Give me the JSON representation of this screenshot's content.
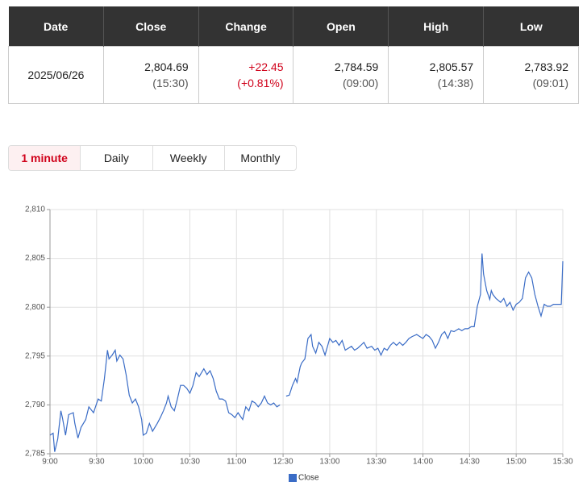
{
  "table": {
    "headers": [
      "Date",
      "Close",
      "Change",
      "Open",
      "High",
      "Low"
    ],
    "row": {
      "date": "2025/06/26",
      "cells": [
        {
          "main": "2,804.69",
          "sub": "(15:30)"
        },
        {
          "main": "+22.45",
          "sub": "(+0.81%)"
        },
        {
          "main": "2,784.59",
          "sub": "(09:00)"
        },
        {
          "main": "2,805.57",
          "sub": "(14:38)"
        },
        {
          "main": "2,783.92",
          "sub": "(09:01)"
        }
      ]
    }
  },
  "tabs": [
    "1 minute",
    "Daily",
    "Weekly",
    "Monthly"
  ],
  "chart_data": {
    "type": "line",
    "xlim": [
      0,
      330
    ],
    "xticks": [
      {
        "value": 0,
        "label": "9:00"
      },
      {
        "value": 30,
        "label": "9:30"
      },
      {
        "value": 60,
        "label": "10:00"
      },
      {
        "value": 90,
        "label": "10:30"
      },
      {
        "value": 120,
        "label": "11:00"
      },
      {
        "value": 150,
        "label": "12:30"
      },
      {
        "value": 180,
        "label": "13:00"
      },
      {
        "value": 210,
        "label": "13:30"
      },
      {
        "value": 240,
        "label": "14:00"
      },
      {
        "value": 270,
        "label": "14:30"
      },
      {
        "value": 300,
        "label": "15:00"
      },
      {
        "value": 330,
        "label": "15:30"
      }
    ],
    "ylim": [
      2785,
      2810
    ],
    "yticks": [
      {
        "value": 2785,
        "label": "2,785"
      },
      {
        "value": 2790,
        "label": "2,790"
      },
      {
        "value": 2795,
        "label": "2,795"
      },
      {
        "value": 2800,
        "label": "2,800"
      },
      {
        "value": 2805,
        "label": "2,805"
      },
      {
        "value": 2810,
        "label": "2,810"
      }
    ],
    "grid": true,
    "legend": "bottom",
    "x": [
      0,
      2,
      3,
      5,
      7,
      8,
      10,
      12,
      15,
      16,
      18,
      20,
      23,
      25,
      28,
      31,
      33,
      35,
      37,
      38,
      40,
      42,
      43,
      45,
      47,
      49,
      51,
      53,
      55,
      57,
      59,
      60,
      62,
      64,
      66,
      69,
      71,
      73,
      75,
      76,
      78,
      80,
      82,
      84,
      86,
      88,
      90,
      92,
      94,
      96,
      99,
      101,
      103,
      105,
      107,
      109,
      111,
      113,
      115,
      117,
      119,
      121,
      124,
      126,
      128,
      130,
      132,
      134,
      136,
      138,
      140,
      142,
      144,
      146,
      148,
      150,
      152,
      154,
      156,
      158,
      159,
      161,
      162,
      164,
      166,
      168,
      169,
      171,
      173,
      175,
      177,
      180,
      182,
      184,
      186,
      188,
      190,
      192,
      194,
      196,
      198,
      200,
      202,
      204,
      207,
      209,
      211,
      213,
      215,
      217,
      219,
      221,
      223,
      225,
      227,
      229,
      231,
      233,
      236,
      238,
      240,
      242,
      244,
      246,
      248,
      250,
      252,
      254,
      256,
      258,
      260,
      263,
      265,
      267,
      269,
      271,
      273,
      275,
      277,
      278,
      279,
      281,
      283,
      284,
      285,
      287,
      290,
      292,
      294,
      296,
      298,
      300,
      302,
      304,
      306,
      308,
      310,
      312,
      314,
      316,
      318,
      320,
      322,
      324,
      326,
      329,
      330
    ],
    "series": [
      {
        "name": "Close",
        "color": "#3a6cc6",
        "values": [
          2786.9,
          2787.1,
          2785.2,
          2786.5,
          2789.4,
          2788.7,
          2786.9,
          2789.0,
          2789.2,
          2788.1,
          2786.6,
          2787.7,
          2788.5,
          2789.8,
          2789.2,
          2790.6,
          2790.4,
          2792.7,
          2795.6,
          2794.7,
          2795.1,
          2795.6,
          2794.5,
          2795.1,
          2794.7,
          2793.1,
          2791.0,
          2790.2,
          2790.6,
          2789.8,
          2788.5,
          2786.9,
          2787.1,
          2788.1,
          2787.3,
          2788.1,
          2788.7,
          2789.4,
          2790.2,
          2790.9,
          2789.8,
          2789.4,
          2790.6,
          2792.0,
          2792.0,
          2791.7,
          2791.2,
          2792.0,
          2793.3,
          2792.9,
          2793.7,
          2793.1,
          2793.5,
          2792.7,
          2791.4,
          2790.6,
          2790.6,
          2790.4,
          2789.2,
          2789.0,
          2788.7,
          2789.2,
          2788.5,
          2789.8,
          2789.4,
          2790.4,
          2790.2,
          2789.8,
          2790.2,
          2790.9,
          2790.2,
          2790.0,
          2790.2,
          2789.8,
          2790.0,
          null,
          2790.9,
          2791.0,
          2792.0,
          2792.7,
          2792.3,
          2793.9,
          2794.3,
          2794.7,
          2796.8,
          2797.2,
          2796.0,
          2795.3,
          2796.4,
          2796.0,
          2795.1,
          2796.8,
          2796.4,
          2796.6,
          2796.1,
          2796.6,
          2795.6,
          2795.8,
          2796.0,
          2795.6,
          2795.8,
          2796.1,
          2796.4,
          2795.8,
          2796.0,
          2795.6,
          2795.8,
          2795.1,
          2795.8,
          2795.6,
          2796.1,
          2796.4,
          2796.1,
          2796.4,
          2796.1,
          2796.4,
          2796.8,
          2797.0,
          2797.2,
          2797.0,
          2796.8,
          2797.2,
          2797.0,
          2796.6,
          2795.8,
          2796.4,
          2797.2,
          2797.5,
          2796.8,
          2797.6,
          2797.5,
          2797.8,
          2797.6,
          2797.8,
          2797.8,
          2798.0,
          2798.0,
          2800.1,
          2801.3,
          2805.5,
          2803.4,
          2801.7,
          2800.8,
          2801.7,
          2801.3,
          2800.9,
          2800.5,
          2800.9,
          2800.1,
          2800.5,
          2799.7,
          2800.3,
          2800.5,
          2800.9,
          2803.0,
          2803.6,
          2803.0,
          2801.3,
          2800.1,
          2799.1,
          2800.3,
          2800.1,
          2800.1,
          2800.3,
          2800.3,
          2800.3,
          2804.7
        ]
      }
    ]
  }
}
